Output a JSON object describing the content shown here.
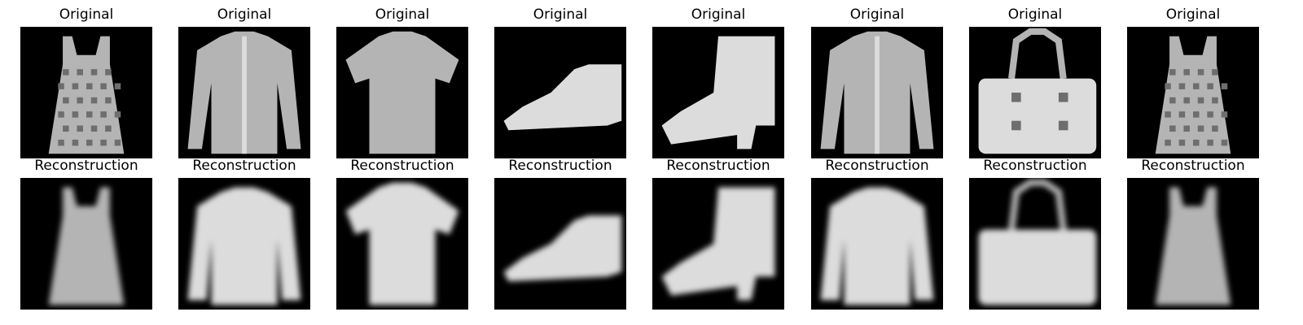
{
  "figure": {
    "rows": [
      {
        "row_label": "Original",
        "items": [
          {
            "title": "Original",
            "depicts": "dress",
            "icon": "dress-icon"
          },
          {
            "title": "Original",
            "depicts": "shirt",
            "icon": "shirt-icon"
          },
          {
            "title": "Original",
            "depicts": "t-shirt",
            "icon": "tshirt-icon"
          },
          {
            "title": "Original",
            "depicts": "sneaker",
            "icon": "sneaker-icon"
          },
          {
            "title": "Original",
            "depicts": "ankle-boot",
            "icon": "boot-icon"
          },
          {
            "title": "Original",
            "depicts": "shirt",
            "icon": "shirt-icon"
          },
          {
            "title": "Original",
            "depicts": "bag",
            "icon": "bag-icon"
          },
          {
            "title": "Original",
            "depicts": "dress",
            "icon": "dress-icon"
          }
        ]
      },
      {
        "row_label": "Reconstruction",
        "items": [
          {
            "title": "Reconstruction",
            "depicts": "dress",
            "icon": "dress-icon"
          },
          {
            "title": "Reconstruction",
            "depicts": "pullover",
            "icon": "pullover-icon"
          },
          {
            "title": "Reconstruction",
            "depicts": "t-shirt",
            "icon": "tshirt-icon"
          },
          {
            "title": "Reconstruction",
            "depicts": "sneaker",
            "icon": "sneaker-icon"
          },
          {
            "title": "Reconstruction",
            "depicts": "ankle-boot",
            "icon": "boot-icon"
          },
          {
            "title": "Reconstruction",
            "depicts": "pullover",
            "icon": "pullover-icon"
          },
          {
            "title": "Reconstruction",
            "depicts": "bag",
            "icon": "bag-icon"
          },
          {
            "title": "Reconstruction",
            "depicts": "dress",
            "icon": "dress-icon"
          }
        ]
      }
    ],
    "colors": {
      "background": "#ffffff",
      "image_background": "#000000",
      "garment_light": "#dcdcdc",
      "garment_mid": "#b4b4b4",
      "garment_dark": "#6e6e6e"
    }
  }
}
